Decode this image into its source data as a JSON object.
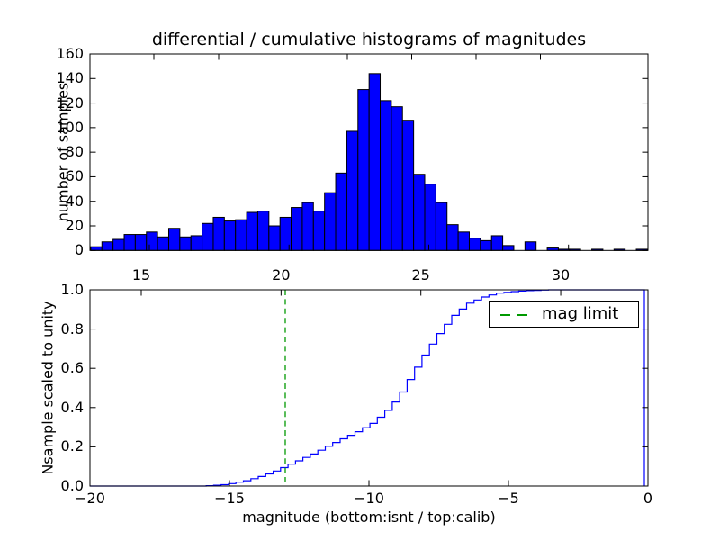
{
  "figure": {
    "title": "differential / cumulative histograms of magnitudes",
    "background_color": "#ffffff"
  },
  "chart_data": [
    {
      "type": "bar",
      "role": "differential-histogram",
      "title": "differential / cumulative histograms of magnitudes",
      "ylabel": "number of samples",
      "xlim": [
        13.15,
        33.15
      ],
      "ylim": [
        0,
        160
      ],
      "bin_start": 13.15,
      "bin_width": 0.4,
      "counts": [
        3,
        7,
        9,
        13,
        13,
        15,
        11,
        18,
        11,
        12,
        22,
        27,
        24,
        25,
        31,
        32,
        20,
        27,
        35,
        39,
        32,
        47,
        63,
        97,
        131,
        144,
        122,
        117,
        106,
        62,
        54,
        39,
        21,
        15,
        10,
        8,
        12,
        4,
        0,
        7,
        0,
        2,
        1,
        1,
        0,
        1,
        0,
        1,
        0,
        1
      ],
      "xticks": [
        15,
        20,
        25,
        30
      ],
      "xticklabels": [
        "15",
        "20",
        "25",
        "30"
      ],
      "yticks": [
        0,
        20,
        40,
        60,
        80,
        100,
        120,
        140,
        160
      ],
      "grid": false,
      "bar_color": "#0000ff",
      "bar_edge_color": "#000000"
    },
    {
      "type": "line",
      "role": "cumulative-histogram",
      "xlabel": "magnitude (bottom:isnt / top:calib)",
      "ylabel": "Nsample scaled to unity",
      "xlim": [
        -20,
        0
      ],
      "ylim": [
        0.0,
        1.0
      ],
      "xticks_bottom": [
        -20,
        -15,
        -10,
        -5,
        0
      ],
      "xticklabels_bottom": [
        "−20",
        "−15",
        "−10",
        "−5",
        "0"
      ],
      "xticks_top_calib": [
        15,
        20,
        25,
        30
      ],
      "xticklabels_top_calib": [
        "15",
        "20",
        "25",
        "30"
      ],
      "yticklabels": [
        "0.0",
        "0.2",
        "0.4",
        "0.6",
        "0.8",
        "1.0"
      ],
      "grid": false,
      "line_color": "#0000ff",
      "step_width": 0.2667,
      "cdf_points": [
        [
          -20,
          0
        ],
        [
          -16,
          0
        ],
        [
          -15.7,
          0.003
        ],
        [
          -15.35,
          0.006
        ],
        [
          -15,
          0.013
        ],
        [
          -14.5,
          0.027
        ],
        [
          -14,
          0.047
        ],
        [
          -13.5,
          0.072
        ],
        [
          -13,
          0.105
        ],
        [
          -12.5,
          0.137
        ],
        [
          -12,
          0.17
        ],
        [
          -11.5,
          0.208
        ],
        [
          -11,
          0.243
        ],
        [
          -10.5,
          0.277
        ],
        [
          -10,
          0.315
        ],
        [
          -9.5,
          0.375
        ],
        [
          -9,
          0.455
        ],
        [
          -8.5,
          0.575
        ],
        [
          -8,
          0.69
        ],
        [
          -7.5,
          0.79
        ],
        [
          -7,
          0.875
        ],
        [
          -6.5,
          0.932
        ],
        [
          -6,
          0.962
        ],
        [
          -5.5,
          0.982
        ],
        [
          -5,
          0.99
        ],
        [
          -4.5,
          0.995
        ],
        [
          -4,
          0.998
        ],
        [
          -3.6,
          1.0
        ],
        [
          -0.13,
          1.0
        ]
      ],
      "mag_limit": {
        "x": -13,
        "color": "#009900",
        "linestyle": "dashed",
        "label": "mag limit"
      },
      "legend": {
        "label": "mag limit",
        "position": "upper right",
        "line_color": "#009900"
      }
    }
  ]
}
